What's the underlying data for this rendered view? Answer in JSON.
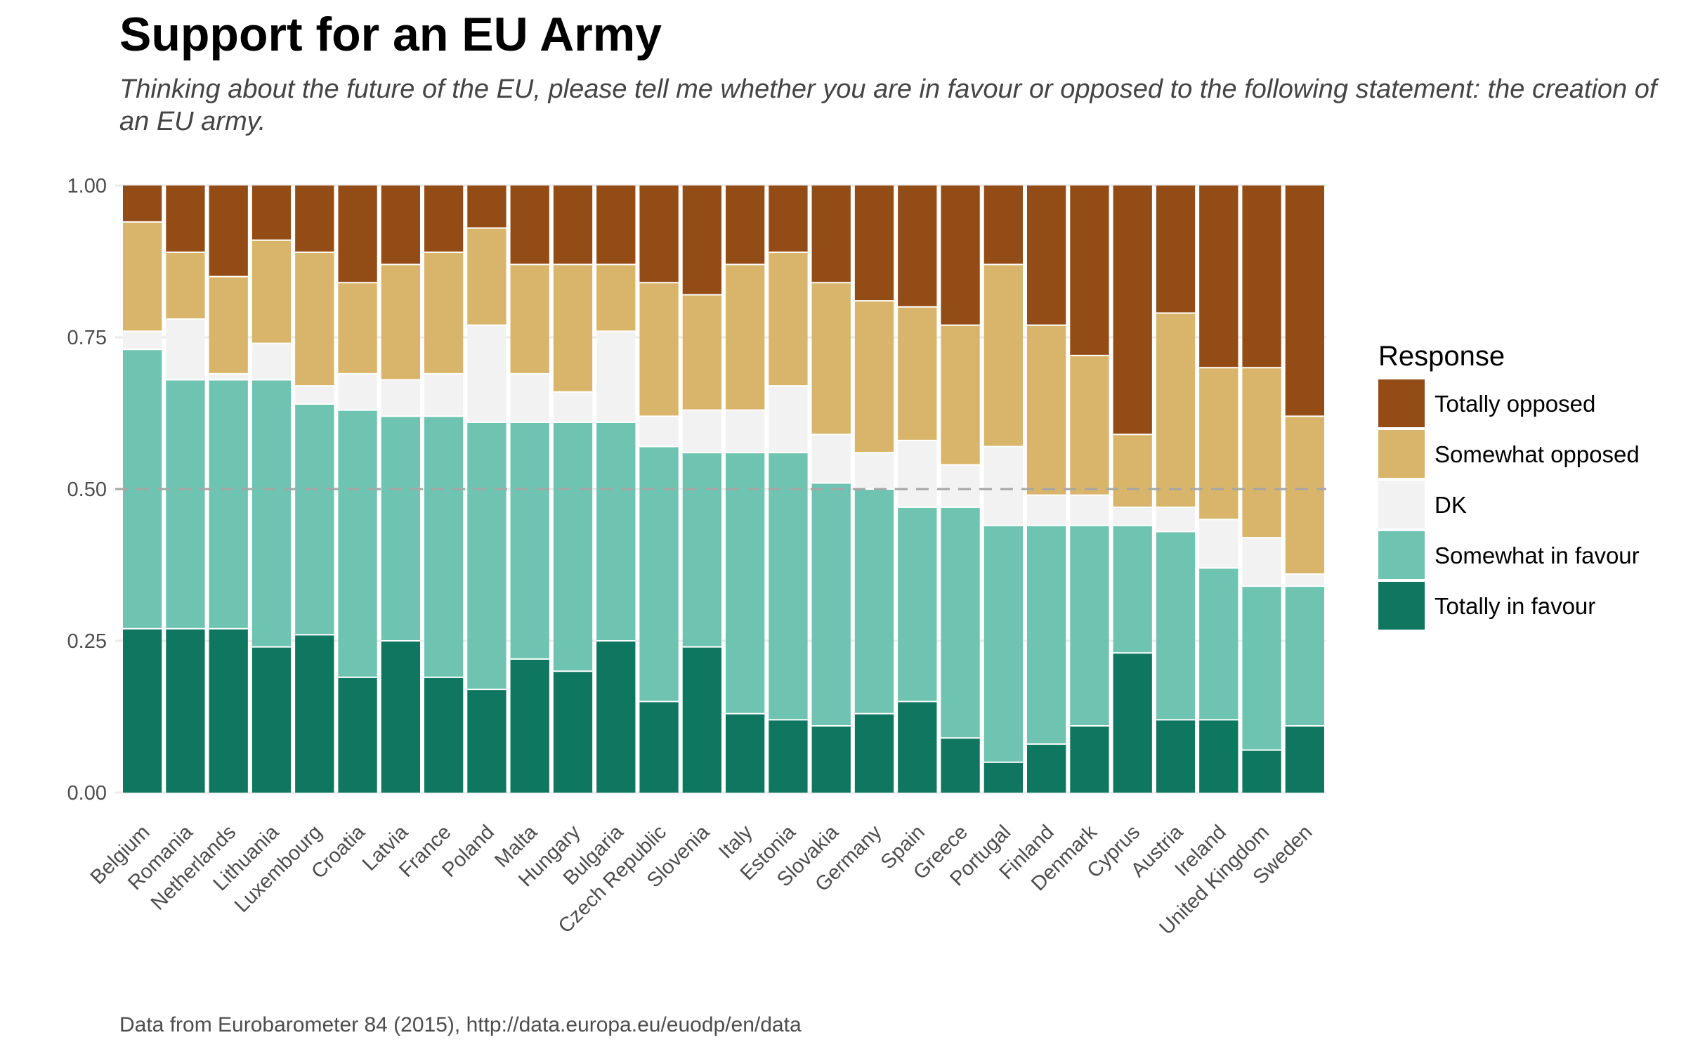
{
  "chart_data": {
    "type": "bar",
    "stacked": "percent",
    "title": "Support for an EU Army",
    "subtitle": "Thinking about the future of the EU, please tell me whether you are in favour or opposed to the following statement: the creation of an EU army.",
    "caption": "Data from Eurobarometer 84 (2015), http://data.europa.eu/euodp/en/data",
    "xlabel": "",
    "ylabel": "",
    "ylim": [
      0,
      1
    ],
    "yticks": [
      "0.00",
      "0.25",
      "0.50",
      "0.75",
      "1.00"
    ],
    "reference_line": 0.5,
    "grid": true,
    "legend_title": "Response",
    "legend_position": "right",
    "categories": [
      "Belgium",
      "Romania",
      "Netherlands",
      "Lithuania",
      "Luxembourg",
      "Croatia",
      "Latvia",
      "France",
      "Poland",
      "Malta",
      "Hungary",
      "Bulgaria",
      "Czech Republic",
      "Slovenia",
      "Italy",
      "Estonia",
      "Slovakia",
      "Germany",
      "Spain",
      "Greece",
      "Portugal",
      "Finland",
      "Denmark",
      "Cyprus",
      "Austria",
      "Ireland",
      "United Kingdom",
      "Sweden"
    ],
    "series": [
      {
        "name": "Totally in favour",
        "color": "#0f7660",
        "values": [
          0.27,
          0.27,
          0.27,
          0.24,
          0.26,
          0.19,
          0.25,
          0.19,
          0.17,
          0.22,
          0.2,
          0.25,
          0.15,
          0.24,
          0.13,
          0.12,
          0.11,
          0.13,
          0.15,
          0.09,
          0.05,
          0.08,
          0.11,
          0.23,
          0.12,
          0.12,
          0.07,
          0.11
        ]
      },
      {
        "name": "Somewhat in favour",
        "color": "#6fc3b1",
        "values": [
          0.46,
          0.41,
          0.41,
          0.44,
          0.38,
          0.44,
          0.37,
          0.43,
          0.44,
          0.39,
          0.41,
          0.36,
          0.42,
          0.32,
          0.43,
          0.44,
          0.4,
          0.37,
          0.32,
          0.38,
          0.39,
          0.36,
          0.33,
          0.21,
          0.31,
          0.25,
          0.27,
          0.23
        ]
      },
      {
        "name": "DK",
        "color": "#f2f2f2",
        "values": [
          0.03,
          0.1,
          0.01,
          0.06,
          0.03,
          0.06,
          0.06,
          0.07,
          0.16,
          0.08,
          0.05,
          0.15,
          0.05,
          0.07,
          0.07,
          0.11,
          0.08,
          0.06,
          0.11,
          0.07,
          0.13,
          0.05,
          0.05,
          0.03,
          0.04,
          0.08,
          0.08,
          0.02
        ]
      },
      {
        "name": "Somewhat opposed",
        "color": "#d8b56a",
        "values": [
          0.18,
          0.11,
          0.16,
          0.17,
          0.22,
          0.15,
          0.19,
          0.2,
          0.16,
          0.18,
          0.21,
          0.11,
          0.22,
          0.19,
          0.24,
          0.22,
          0.25,
          0.25,
          0.22,
          0.23,
          0.3,
          0.28,
          0.23,
          0.12,
          0.32,
          0.25,
          0.28,
          0.26
        ]
      },
      {
        "name": "Totally opposed",
        "color": "#944c16",
        "values": [
          0.06,
          0.11,
          0.15,
          0.09,
          0.11,
          0.16,
          0.13,
          0.11,
          0.07,
          0.13,
          0.13,
          0.13,
          0.16,
          0.18,
          0.13,
          0.11,
          0.16,
          0.19,
          0.2,
          0.23,
          0.13,
          0.23,
          0.28,
          0.41,
          0.21,
          0.3,
          0.3,
          0.38
        ]
      }
    ],
    "legend_order": [
      "Totally opposed",
      "Somewhat opposed",
      "DK",
      "Somewhat in favour",
      "Totally in favour"
    ]
  }
}
